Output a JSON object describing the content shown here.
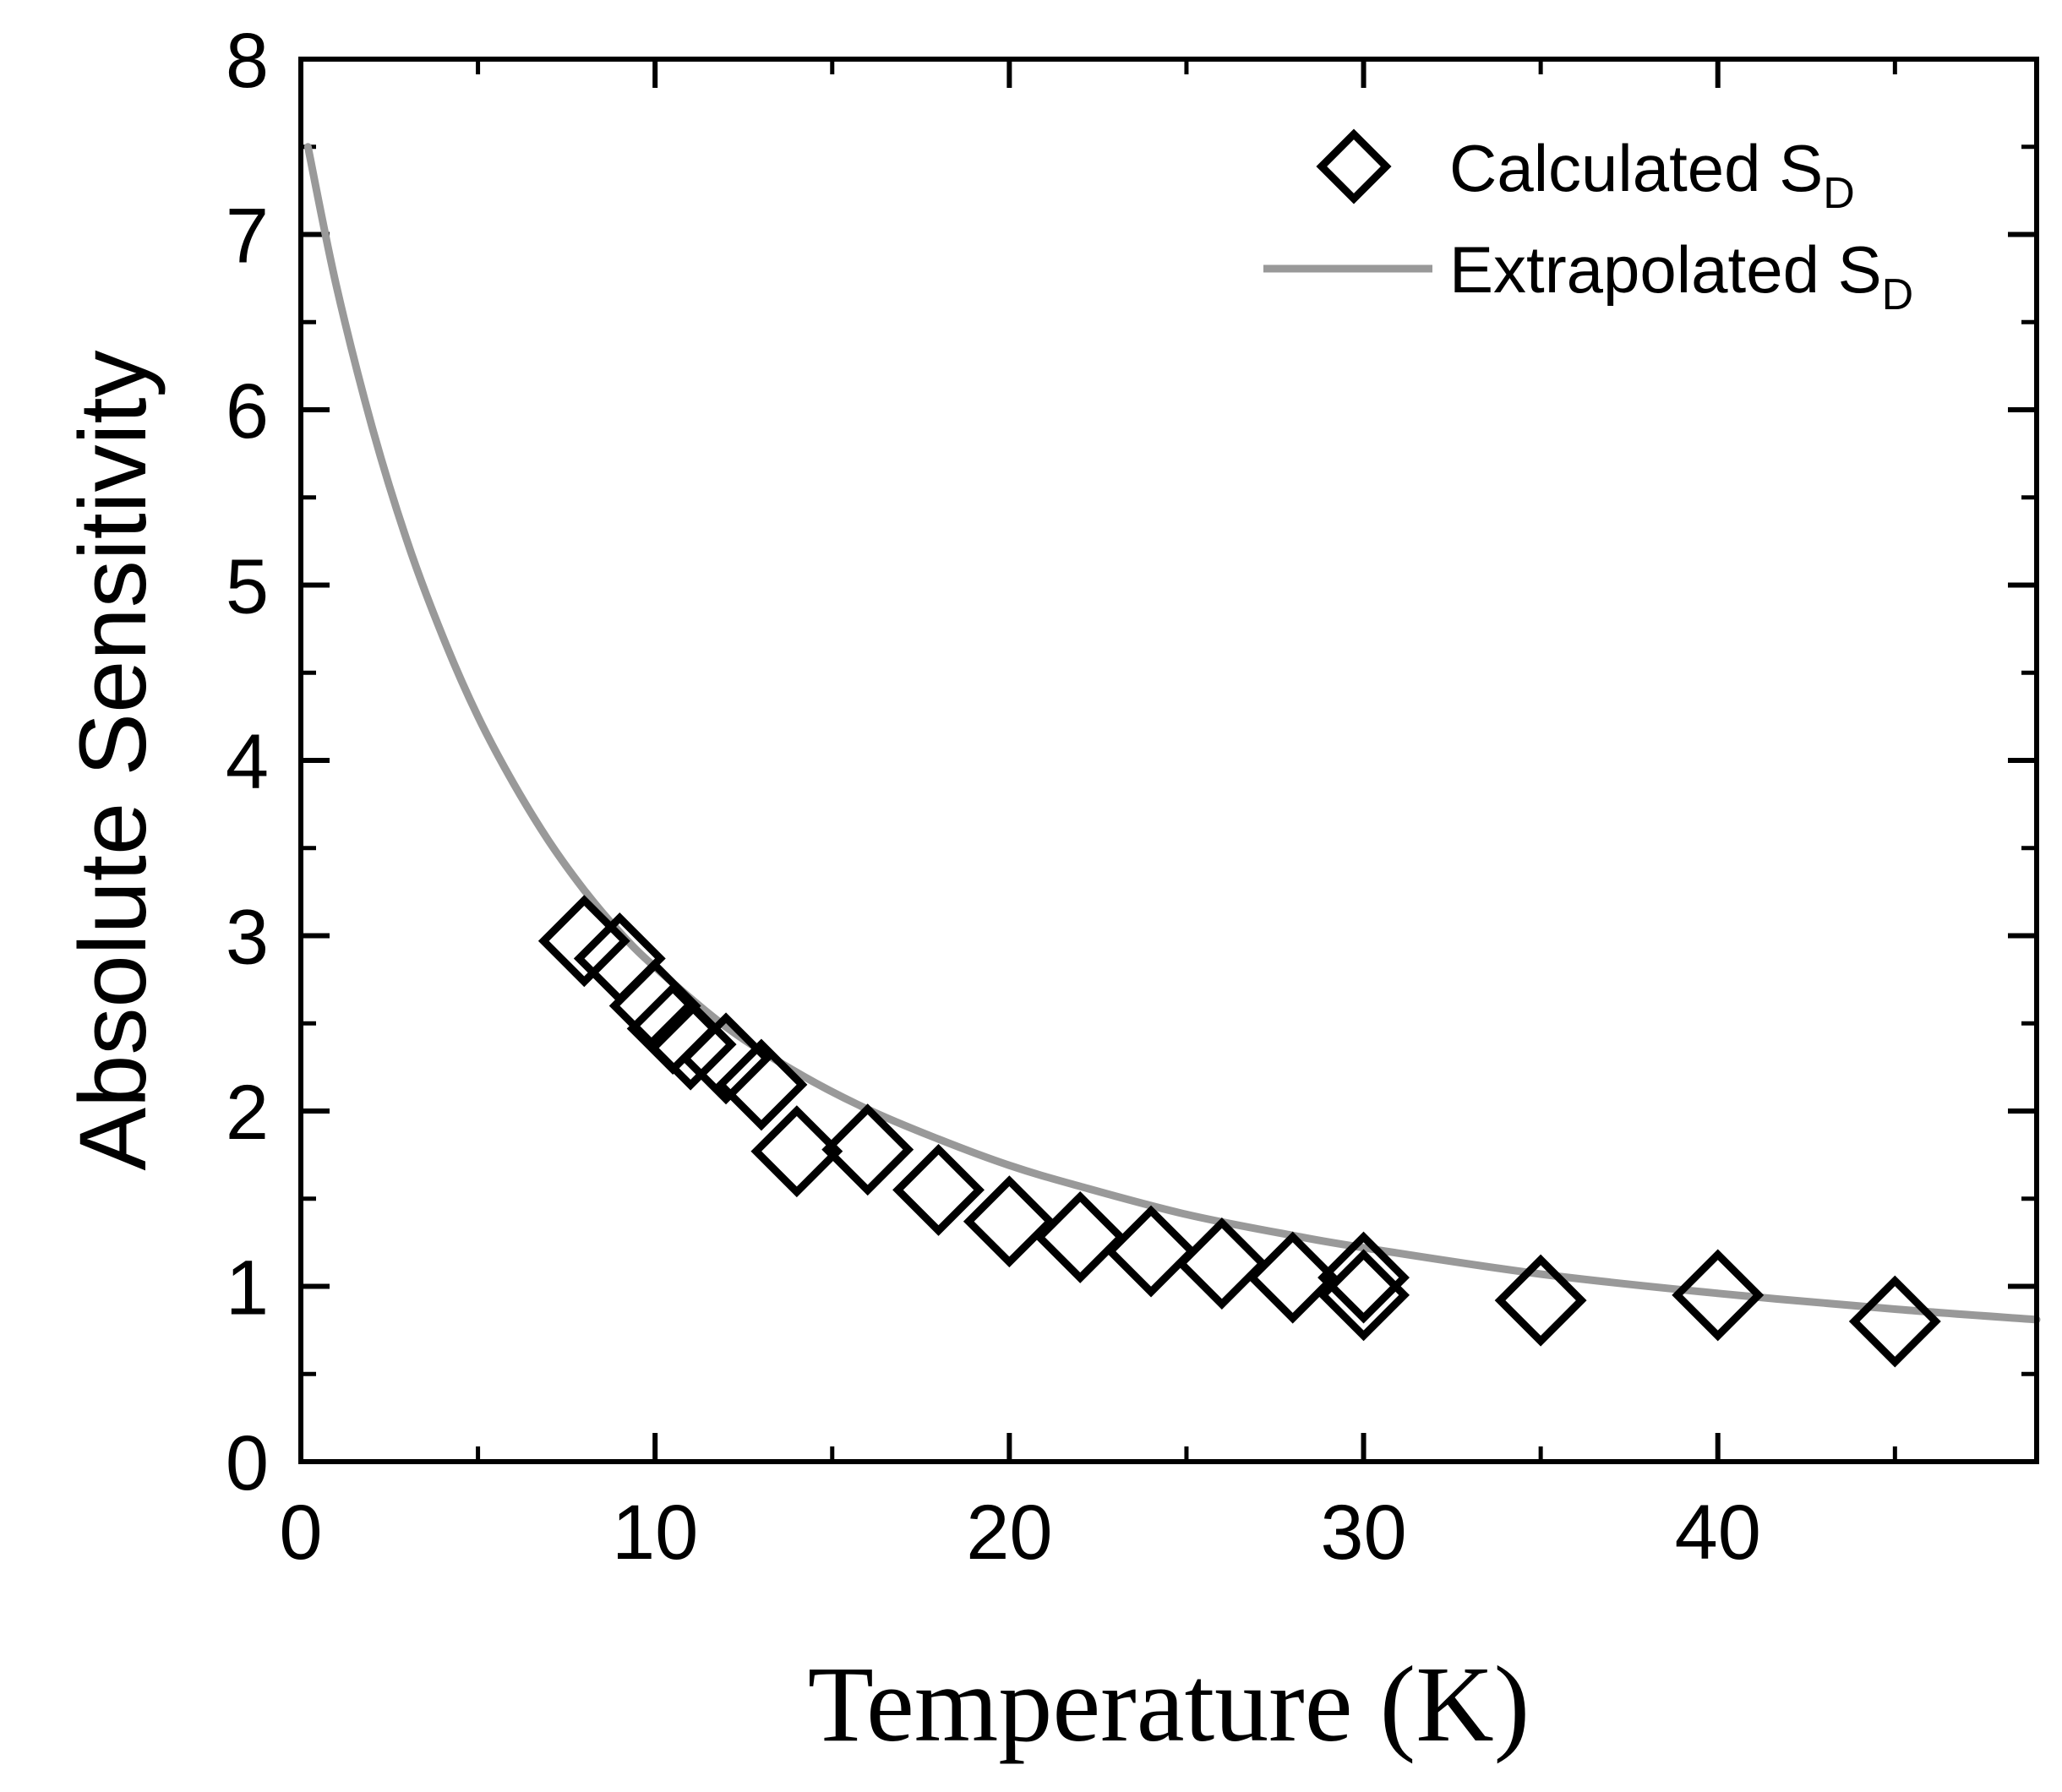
{
  "chart_data": {
    "type": "scatter",
    "title": "",
    "xlabel": "Temperature (K)",
    "ylabel": "Absolute Sensitivity",
    "xlim": [
      0,
      49
    ],
    "ylim": [
      0,
      8
    ],
    "xticks": [
      0,
      10,
      20,
      30,
      40
    ],
    "yticks": [
      0,
      1,
      2,
      3,
      4,
      5,
      6,
      7,
      8
    ],
    "grid": false,
    "legend_position": "top-right",
    "series": [
      {
        "name": "Calculated S_D",
        "legend_main": "Calculated S",
        "legend_sub": "D",
        "kind": "scatter",
        "marker": "diamond-open",
        "color": "#000000",
        "x": [
          8,
          9,
          10,
          10.5,
          11,
          12,
          13,
          14,
          16,
          18,
          20,
          22,
          24,
          26,
          28,
          30,
          30,
          35,
          40,
          45
        ],
        "y": [
          2.97,
          2.87,
          2.6,
          2.47,
          2.38,
          2.3,
          2.15,
          1.77,
          1.78,
          1.55,
          1.37,
          1.28,
          1.2,
          1.13,
          1.05,
          0.95,
          1.05,
          0.92,
          0.95,
          0.8
        ]
      },
      {
        "name": "Extrapolated S_D",
        "legend_main": "Extrapolated S",
        "legend_sub": "D",
        "kind": "line",
        "color": "#999999",
        "x": [
          0.2,
          1,
          2,
          3,
          4,
          5,
          6,
          7,
          8,
          9,
          10,
          12,
          14,
          16,
          18,
          20,
          22,
          25,
          28,
          30,
          35,
          40,
          45,
          49
        ],
        "y": [
          7.5,
          6.71,
          5.91,
          5.25,
          4.71,
          4.25,
          3.87,
          3.54,
          3.26,
          3.02,
          2.82,
          2.48,
          2.22,
          2.01,
          1.84,
          1.69,
          1.57,
          1.41,
          1.29,
          1.22,
          1.07,
          0.96,
          0.87,
          0.81
        ]
      }
    ]
  }
}
